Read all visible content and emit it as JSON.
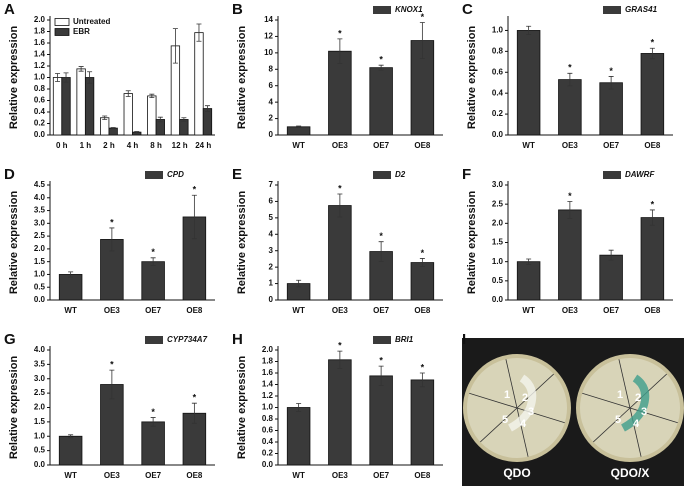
{
  "chart_data": [
    {
      "type": "bar",
      "panel": "A",
      "ylabel": "Relative expression",
      "legend": "upper left",
      "categories": [
        "0 h",
        "1 h",
        "2 h",
        "4 h",
        "8 h",
        "12 h",
        "24 h"
      ],
      "series": [
        {
          "name": "Untreated",
          "color": "#ffffff",
          "values": [
            1.0,
            1.15,
            0.3,
            0.72,
            0.68,
            1.55,
            1.78
          ],
          "errors": [
            0.07,
            0.04,
            0.03,
            0.05,
            0.03,
            0.3,
            0.15
          ]
        },
        {
          "name": "EBR",
          "color": "#3a3a3a",
          "values": [
            1.0,
            1.0,
            0.12,
            0.05,
            0.27,
            0.27,
            0.46
          ],
          "errors": [
            0.08,
            0.1,
            0.01,
            0.01,
            0.04,
            0.03,
            0.05
          ]
        }
      ],
      "ylim": [
        0,
        2.0
      ],
      "yticks": [
        {
          "value": 0,
          "label": "0.0"
        },
        0.2,
        0.4,
        0.6,
        0.8,
        {
          "value": 1,
          "label": "1.0"
        },
        1.2,
        1.4,
        1.6,
        1.8,
        {
          "value": 2,
          "label": "2.0"
        }
      ]
    },
    {
      "type": "bar",
      "panel": "B",
      "ylabel": "Relative expression",
      "legend": "upper right",
      "categories": [
        "WT",
        "OE3",
        "OE7",
        "OE8"
      ],
      "significance": [
        null,
        "*",
        "*",
        "*"
      ],
      "series": [
        {
          "name": "KNOX1",
          "color": "#3a3a3a",
          "values": [
            1.0,
            10.2,
            8.2,
            11.5
          ],
          "errors": [
            0.1,
            1.5,
            0.3,
            2.2
          ]
        }
      ],
      "ylim": [
        0,
        14
      ],
      "yticks": [
        0,
        2,
        4,
        6,
        8,
        10,
        12,
        14
      ]
    },
    {
      "type": "bar",
      "panel": "C",
      "ylabel": "Relative expression",
      "legend": "upper right",
      "categories": [
        "WT",
        "OE3",
        "OE7",
        "OE8"
      ],
      "significance": [
        null,
        "*",
        "*",
        "*"
      ],
      "series": [
        {
          "name": "GRAS41",
          "color": "#3a3a3a",
          "values": [
            1.0,
            0.53,
            0.5,
            0.78
          ],
          "errors": [
            0.04,
            0.06,
            0.06,
            0.05
          ]
        }
      ],
      "ylim": [
        0,
        1.1
      ],
      "yticks": [
        {
          "value": 0,
          "label": "0.0"
        },
        0.2,
        0.4,
        0.6,
        0.8,
        {
          "value": 1,
          "label": "1.0"
        }
      ]
    },
    {
      "type": "bar",
      "panel": "D",
      "ylabel": "Relative expression",
      "legend": "upper right",
      "categories": [
        "WT",
        "OE3",
        "OE7",
        "OE8"
      ],
      "significance": [
        null,
        "*",
        "*",
        "*"
      ],
      "series": [
        {
          "name": "CPD",
          "color": "#3a3a3a",
          "values": [
            1.0,
            2.37,
            1.5,
            3.25
          ],
          "errors": [
            0.1,
            0.45,
            0.15,
            0.85
          ]
        }
      ],
      "ylim": [
        0,
        4.5
      ],
      "yticks": [
        {
          "value": 0,
          "label": "0.0"
        },
        0.5,
        {
          "value": 1,
          "label": "1.0"
        },
        1.5,
        {
          "value": 2,
          "label": "2.0"
        },
        2.5,
        {
          "value": 3,
          "label": "3.0"
        },
        3.5,
        {
          "value": 4,
          "label": "4.0"
        },
        4.5
      ]
    },
    {
      "type": "bar",
      "panel": "E",
      "ylabel": "Relative expression",
      "legend": "upper right",
      "categories": [
        "WT",
        "OE3",
        "OE7",
        "OE8"
      ],
      "significance": [
        null,
        "*",
        "*",
        "*"
      ],
      "series": [
        {
          "name": "D2",
          "color": "#3a3a3a",
          "values": [
            1.0,
            5.75,
            2.95,
            2.28
          ],
          "errors": [
            0.2,
            0.7,
            0.6,
            0.25
          ]
        }
      ],
      "ylim": [
        0,
        7
      ],
      "yticks": [
        0,
        1,
        2,
        3,
        4,
        5,
        6,
        7
      ]
    },
    {
      "type": "bar",
      "panel": "F",
      "ylabel": "Relative expression",
      "legend": "upper right",
      "categories": [
        "WT",
        "OE3",
        "OE7",
        "OE8"
      ],
      "significance": [
        null,
        "*",
        null,
        "*"
      ],
      "series": [
        {
          "name": "DAWRF",
          "color": "#3a3a3a",
          "values": [
            1.0,
            2.35,
            1.17,
            2.15
          ],
          "errors": [
            0.07,
            0.22,
            0.13,
            0.2
          ]
        }
      ],
      "ylim": [
        0,
        3.0
      ],
      "yticks": [
        {
          "value": 0,
          "label": "0.0"
        },
        0.5,
        {
          "value": 1,
          "label": "1.0"
        },
        1.5,
        {
          "value": 2,
          "label": "2.0"
        },
        2.5,
        {
          "value": 3,
          "label": "3.0"
        }
      ]
    },
    {
      "type": "bar",
      "panel": "G",
      "ylabel": "Relative expression",
      "legend": "upper right",
      "categories": [
        "WT",
        "OE3",
        "OE7",
        "OE8"
      ],
      "significance": [
        null,
        "*",
        "*",
        "*"
      ],
      "series": [
        {
          "name": "CYP734A7",
          "color": "#3a3a3a",
          "values": [
            1.0,
            2.8,
            1.5,
            1.8
          ],
          "errors": [
            0.05,
            0.5,
            0.15,
            0.35
          ]
        }
      ],
      "ylim": [
        0,
        4.0
      ],
      "yticks": [
        {
          "value": 0,
          "label": "0.0"
        },
        0.5,
        {
          "value": 1,
          "label": "1.0"
        },
        1.5,
        {
          "value": 2,
          "label": "2.0"
        },
        2.5,
        {
          "value": 3,
          "label": "3.0"
        },
        3.5,
        {
          "value": 4,
          "label": "4.0"
        }
      ]
    },
    {
      "type": "bar",
      "panel": "H",
      "ylabel": "Relative expression",
      "legend": "upper right",
      "categories": [
        "WT",
        "OE3",
        "OE7",
        "OE8"
      ],
      "significance": [
        null,
        "*",
        "*",
        "*"
      ],
      "series": [
        {
          "name": "BRI1",
          "color": "#3a3a3a",
          "values": [
            1.0,
            1.83,
            1.55,
            1.48
          ],
          "errors": [
            0.07,
            0.15,
            0.17,
            0.12
          ]
        }
      ],
      "ylim": [
        0,
        2.0
      ],
      "yticks": [
        {
          "value": 0,
          "label": "0.0"
        },
        0.2,
        0.4,
        0.6,
        0.8,
        {
          "value": 1,
          "label": "1.0"
        },
        1.2,
        1.4,
        1.6,
        1.8,
        {
          "value": 2,
          "label": "2.0"
        }
      ]
    }
  ],
  "photo": {
    "panel": "I",
    "plates": [
      "QDO",
      "QDO/X"
    ],
    "sectors": [
      "1",
      "2",
      "3",
      "4",
      "5"
    ]
  }
}
